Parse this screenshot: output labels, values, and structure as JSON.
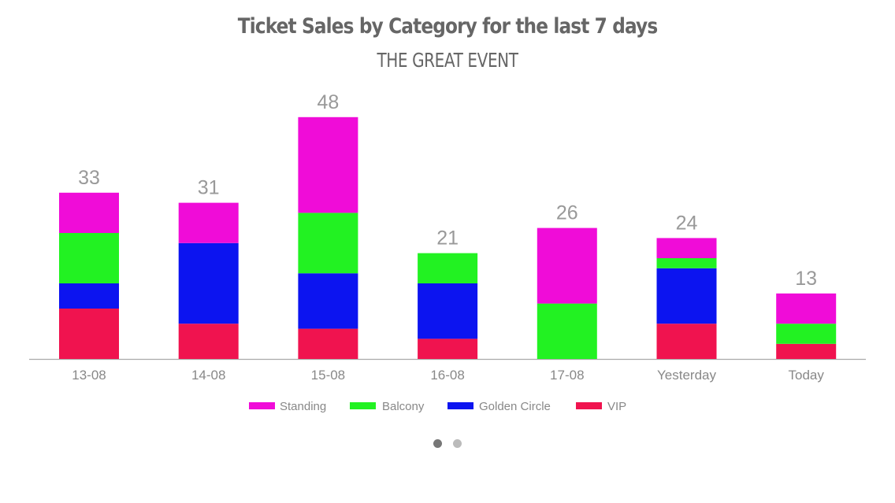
{
  "chart_data": {
    "type": "bar",
    "stacked": true,
    "title": "Ticket Sales by Category for the last 7 days",
    "subtitle": "THE GREAT EVENT",
    "categories": [
      "13-08",
      "14-08",
      "15-08",
      "16-08",
      "17-08",
      "Yesterday",
      "Today"
    ],
    "totals": [
      33,
      31,
      48,
      21,
      26,
      24,
      13
    ],
    "series": [
      {
        "name": "VIP",
        "color": "#f0134f",
        "values": [
          10,
          7,
          6,
          4,
          0,
          7,
          3
        ]
      },
      {
        "name": "Golden Circle",
        "color": "#0c14f0",
        "values": [
          5,
          16,
          11,
          11,
          0,
          11,
          0
        ]
      },
      {
        "name": "Balcony",
        "color": "#22f222",
        "values": [
          10,
          0,
          12,
          6,
          11,
          2,
          4
        ]
      },
      {
        "name": "Standing",
        "color": "#f00cd8",
        "values": [
          8,
          8,
          19,
          0,
          15,
          4,
          6
        ]
      }
    ],
    "legend_order": [
      "Standing",
      "Balcony",
      "Golden Circle",
      "VIP"
    ],
    "legend_position": "bottom",
    "ylim": [
      0,
      50
    ],
    "grid": false
  },
  "colors": {
    "axis": "#aaaaaa",
    "label_text": "#888888",
    "total_text": "#999999",
    "title_text": "#666666",
    "dot_active": "#777777",
    "dot_inactive": "#bbbbbb"
  },
  "pager": {
    "pages": 2,
    "active_page": 1
  }
}
